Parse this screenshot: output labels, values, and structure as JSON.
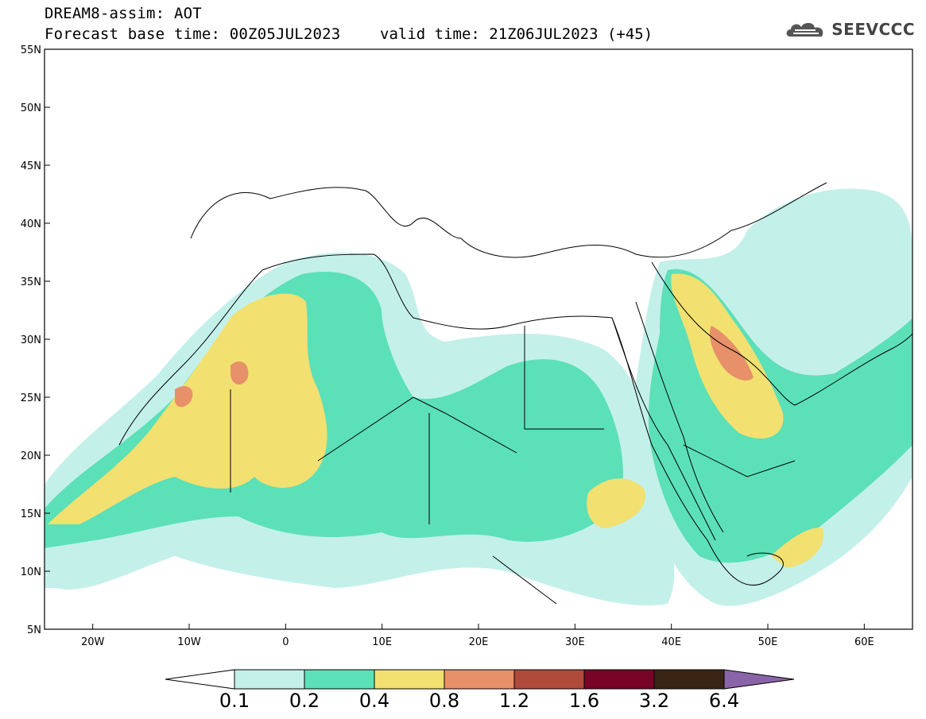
{
  "header": {
    "title": "DREAM8-assim: AOT",
    "base_time": "Forecast base time: 00Z05JUL2023",
    "valid_time": "valid time: 21Z06JUL2023 (+45)",
    "logo_text": "SEEVCCC"
  },
  "map": {
    "lon_range": [
      -25,
      65
    ],
    "lat_range": [
      5,
      55
    ],
    "lat_labels": [
      "55N",
      "50N",
      "45N",
      "40N",
      "35N",
      "30N",
      "25N",
      "20N",
      "15N",
      "10N",
      "5N"
    ],
    "lon_labels": [
      "20W",
      "10W",
      "0",
      "10E",
      "20E",
      "30E",
      "40E",
      "50E",
      "60E"
    ],
    "variable": "Aerosol Optical Thickness",
    "land_color": "#ffffff",
    "border_color": "#000000"
  },
  "colorbar": {
    "labels": [
      "0.1",
      "0.2",
      "0.4",
      "0.8",
      "1.2",
      "1.6",
      "3.2",
      "6.4"
    ],
    "colors": [
      "#c4f0ea",
      "#5ce0b8",
      "#f2e070",
      "#e8906a",
      "#b04a3a",
      "#7a0428",
      "#3a2414",
      "#8a64a8"
    ],
    "under_color": "#ffffff"
  }
}
